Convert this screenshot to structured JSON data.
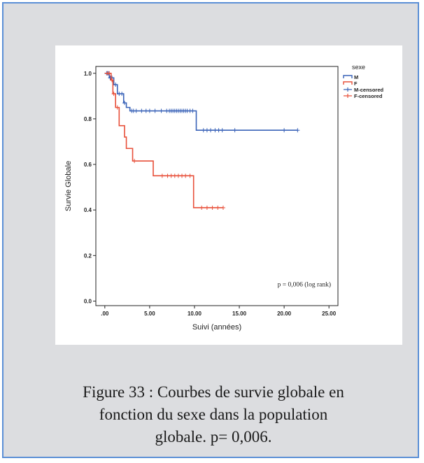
{
  "chart_data": {
    "type": "line",
    "xlabel": "Suivi (années)",
    "ylabel": "Survie Globale",
    "xlim": [
      -1,
      26
    ],
    "ylim": [
      -0.02,
      1.03
    ],
    "xticks": [
      0,
      5,
      10,
      15,
      20,
      25
    ],
    "xtick_labels": [
      ".00",
      "5.00",
      "10.00",
      "15.00",
      "20.00",
      "25.00"
    ],
    "yticks": [
      0,
      0.2,
      0.4,
      0.6,
      0.8,
      1.0
    ],
    "ytick_labels": [
      "0.0",
      "0.2",
      "0.4",
      "0.6",
      "0.8",
      "1.0"
    ],
    "legend_title": "sexe",
    "legend_position": "top-right outside",
    "annotation": "p = 0,006 (log rank)",
    "series": [
      {
        "name": "M",
        "color": "#3a63b8",
        "steps": [
          [
            0,
            1.0
          ],
          [
            0.5,
            0.98
          ],
          [
            1.0,
            0.95
          ],
          [
            1.4,
            0.91
          ],
          [
            2.1,
            0.87
          ],
          [
            2.4,
            0.85
          ],
          [
            2.8,
            0.835
          ],
          [
            10.2,
            0.75
          ],
          [
            21.5,
            0.75
          ]
        ],
        "censored_name": "M-censored",
        "censored": [
          0.2,
          0.3,
          0.4,
          0.6,
          0.7,
          0.8,
          1.2,
          1.6,
          1.9,
          2.2,
          3.0,
          3.2,
          3.5,
          4.1,
          4.6,
          5.0,
          5.6,
          6.3,
          6.9,
          7.2,
          7.4,
          7.6,
          7.8,
          8.0,
          8.2,
          8.4,
          8.6,
          8.8,
          9.0,
          9.2,
          9.5,
          9.8,
          11.0,
          11.4,
          11.8,
          12.3,
          12.7,
          13.1,
          14.5,
          20.0,
          21.5
        ]
      },
      {
        "name": "F",
        "color": "#e8503a",
        "steps": [
          [
            0,
            1.0
          ],
          [
            0.7,
            0.97
          ],
          [
            0.9,
            0.91
          ],
          [
            1.2,
            0.85
          ],
          [
            1.6,
            0.77
          ],
          [
            2.2,
            0.72
          ],
          [
            2.4,
            0.67
          ],
          [
            3.1,
            0.615
          ],
          [
            5.4,
            0.55
          ],
          [
            9.9,
            0.41
          ],
          [
            13.2,
            0.41
          ]
        ],
        "censored_name": "F-censored",
        "censored": [
          0.3,
          0.5,
          0.8,
          1.0,
          1.4,
          3.3,
          6.4,
          7.0,
          7.4,
          7.8,
          8.2,
          8.6,
          9.0,
          9.5,
          10.8,
          11.4,
          12.0,
          12.6,
          13.2
        ]
      }
    ]
  },
  "caption": {
    "line1": "Figure 33 : Courbes de survie globale  en",
    "line2": "fonction du sexe dans la population",
    "line3": "globale. p= 0,006."
  }
}
